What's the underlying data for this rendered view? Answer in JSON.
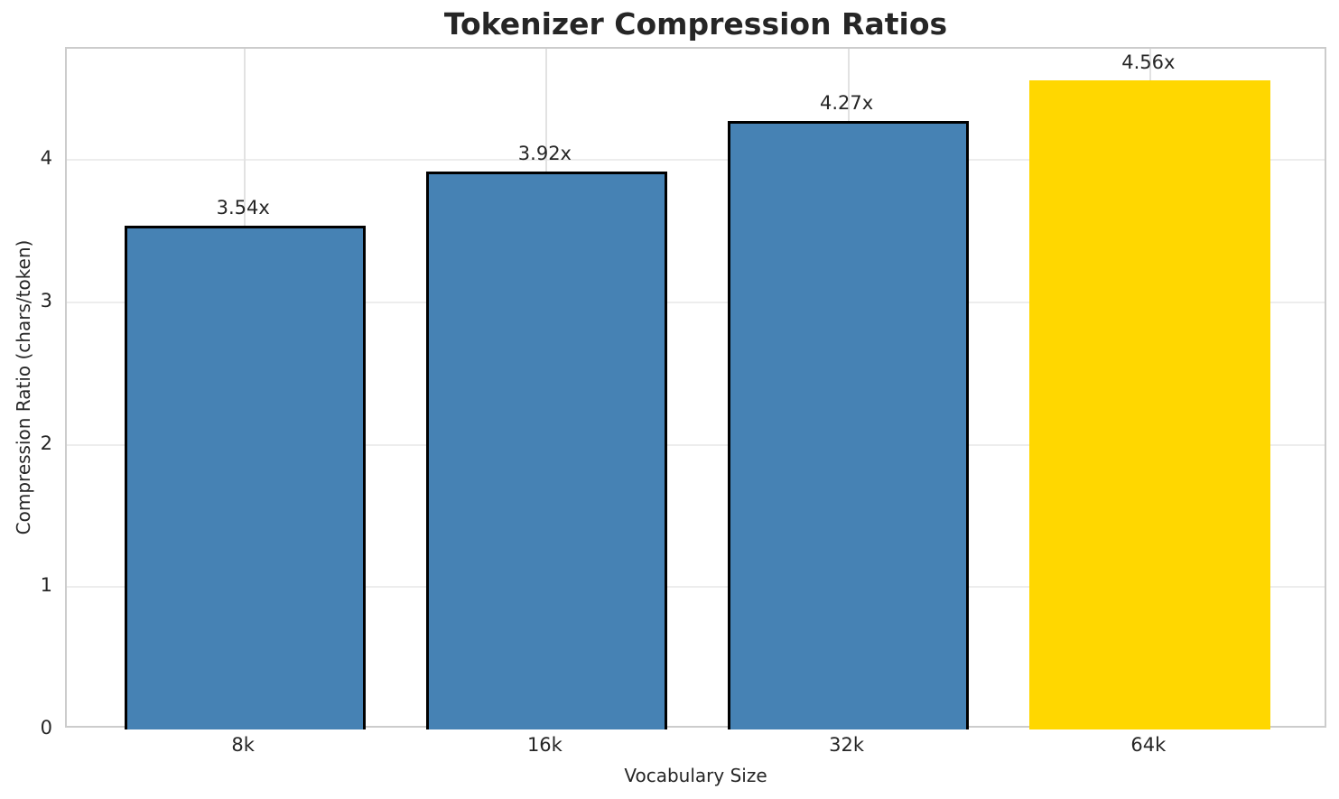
{
  "chart_data": {
    "type": "bar",
    "title": "Tokenizer Compression Ratios",
    "xlabel": "Vocabulary Size",
    "ylabel": "Compression Ratio (chars/token)",
    "categories": [
      "8k",
      "16k",
      "32k",
      "64k"
    ],
    "values": [
      3.54,
      3.92,
      4.27,
      4.56
    ],
    "bar_labels": [
      "3.54x",
      "3.92x",
      "4.27x",
      "4.56x"
    ],
    "yticks": [
      0,
      1,
      2,
      3,
      4
    ],
    "ylim": [
      0,
      4.78
    ],
    "grid": "on",
    "legend": "none",
    "highlight_index": 3,
    "colors": {
      "bar_default": "#4682B4",
      "bar_highlight": "#FFD700",
      "bar_edge": "#000000",
      "grid_horizontal": "#ededed",
      "grid_vertical": "#e2e2e2",
      "spine": "#cccccc",
      "text": "#262626"
    }
  }
}
